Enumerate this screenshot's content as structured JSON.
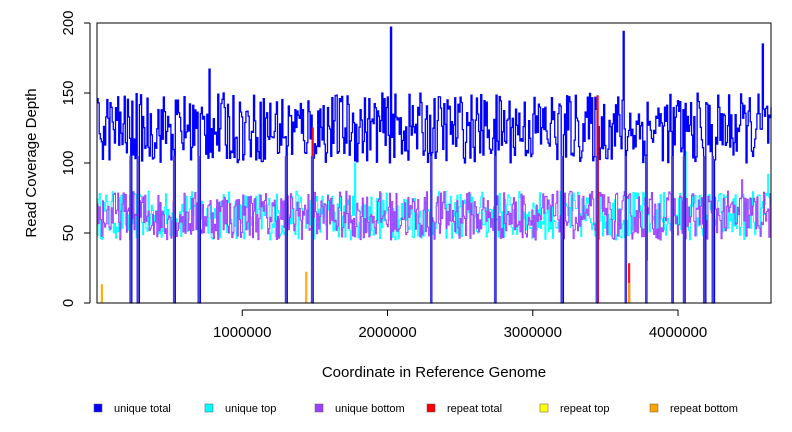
{
  "chart_data": {
    "type": "line",
    "xlabel": "Coordinate in Reference Genome",
    "ylabel": "Read Coverage Depth",
    "xlim": [
      0,
      4640000
    ],
    "ylim": [
      0,
      200
    ],
    "x_ticks": [
      1000000,
      2000000,
      3000000,
      4000000
    ],
    "x_tick_labels": [
      "1000000",
      "2000000",
      "3000000",
      "4000000"
    ],
    "y_ticks": [
      0,
      50,
      100,
      150,
      200
    ],
    "y_tick_labels": [
      "0",
      "50",
      "100",
      "150",
      "200"
    ],
    "legend_position": "bottom",
    "series": [
      {
        "name": "unique total",
        "color": "#0000ff",
        "typical_range": [
          100,
          150
        ],
        "peaks": [
          [
            770000,
            167
          ],
          [
            2020000,
            197
          ],
          [
            3620000,
            194
          ],
          [
            4580000,
            185
          ]
        ]
      },
      {
        "name": "unique top",
        "color": "#00ffff",
        "typical_range": [
          45,
          80
        ],
        "peaks": [
          [
            1770000,
            100
          ],
          [
            4050000,
            108
          ],
          [
            4620000,
            92
          ]
        ]
      },
      {
        "name": "unique bottom",
        "color": "#a040ff",
        "typical_range": [
          45,
          80
        ],
        "peaks": [
          [
            4440000,
            88
          ]
        ]
      },
      {
        "name": "repeat total",
        "color": "#ff0000",
        "typical_range": [
          0,
          0
        ],
        "peaks": [
          [
            1480000,
            125
          ],
          [
            3440000,
            148
          ],
          [
            3660000,
            28
          ]
        ]
      },
      {
        "name": "repeat top",
        "color": "#ffff00",
        "typical_range": [
          0,
          0
        ],
        "peaks": []
      },
      {
        "name": "repeat bottom",
        "color": "#ffa500",
        "typical_range": [
          0,
          0
        ],
        "peaks": [
          [
            30000,
            13
          ],
          [
            1440000,
            22
          ],
          [
            3660000,
            14
          ],
          [
            3780000,
            30
          ]
        ]
      }
    ],
    "dropouts_x": [
      230000,
      280000,
      530000,
      700000,
      1300000,
      1480000,
      2300000,
      2740000,
      3200000,
      3440000,
      3640000,
      3780000,
      3960000,
      4040000,
      4180000,
      4240000
    ]
  }
}
